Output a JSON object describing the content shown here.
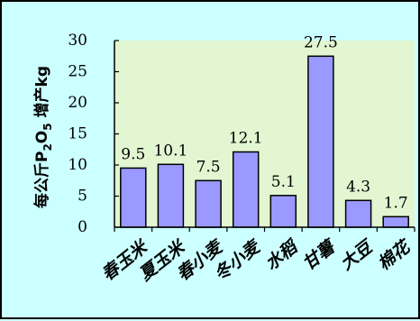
{
  "chart_data": {
    "type": "bar",
    "title": "",
    "xlabel": "",
    "ylabel": {
      "prefix": "每公斤P",
      "sub1": "2",
      "mid": "O",
      "sub2": "5",
      "suffix": " 增产kg"
    },
    "categories": [
      "春玉米",
      "夏玉米",
      "春小麦",
      "冬小麦",
      "水稻",
      "甘薯",
      "大豆",
      "棉花"
    ],
    "values": [
      9.5,
      10.1,
      7.5,
      12.1,
      5.1,
      27.5,
      4.3,
      1.7
    ],
    "data_labels": [
      "9.5",
      "10.1",
      "7.5",
      "12.1",
      "5.1",
      "27.5",
      "4.3",
      "1.7"
    ],
    "yticks": [
      "0",
      "5",
      "10",
      "15",
      "20",
      "25",
      "30"
    ],
    "ylim": [
      0,
      30
    ],
    "grid": false,
    "legend": "none",
    "colors": {
      "background": "#ccffff",
      "plot_area": "#e2f6d2",
      "bar_fill": "#9999ff",
      "bar_stroke": "#000000"
    }
  }
}
